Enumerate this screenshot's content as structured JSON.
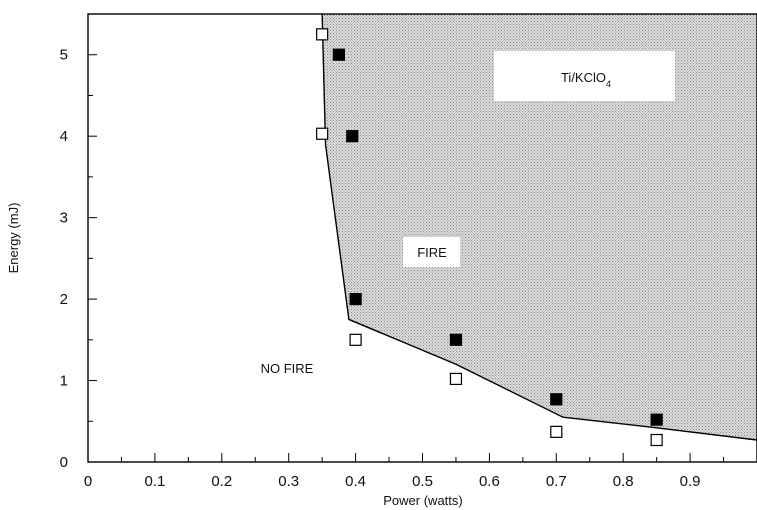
{
  "chart_data": {
    "type": "scatter",
    "title": "",
    "xlabel": "Power (watts)",
    "ylabel": "Energy (mJ)",
    "xlim": [
      0,
      1.0
    ],
    "ylim": [
      0,
      5.5
    ],
    "x_ticks": [
      "0",
      "0.1",
      "0.2",
      "0.3",
      "0.4",
      "0.5",
      "0.6",
      "0.7",
      "0.8",
      "0.9"
    ],
    "x_tick_values": [
      0,
      0.1,
      0.2,
      0.3,
      0.4,
      0.5,
      0.6,
      0.7,
      0.8,
      0.9
    ],
    "y_ticks": [
      "0",
      "1",
      "2",
      "3",
      "4",
      "5"
    ],
    "y_tick_values": [
      0,
      1,
      2,
      3,
      4,
      5
    ],
    "grid": false,
    "legend": "none",
    "series": [
      {
        "marker": "filled-square",
        "points": [
          {
            "x": 0.375,
            "y": 5.0
          },
          {
            "x": 0.395,
            "y": 4.0
          },
          {
            "x": 0.4,
            "y": 2.0
          },
          {
            "x": 0.55,
            "y": 1.5
          },
          {
            "x": 0.7,
            "y": 0.77
          },
          {
            "x": 0.85,
            "y": 0.52
          }
        ]
      },
      {
        "marker": "open-square",
        "points": [
          {
            "x": 0.35,
            "y": 5.25
          },
          {
            "x": 0.35,
            "y": 4.03
          },
          {
            "x": 0.4,
            "y": 1.5
          },
          {
            "x": 0.55,
            "y": 1.02
          },
          {
            "x": 0.7,
            "y": 0.37
          },
          {
            "x": 0.85,
            "y": 0.27
          }
        ]
      }
    ],
    "boundary": [
      {
        "x": 0.35,
        "y": 5.5
      },
      {
        "x": 0.355,
        "y": 3.9
      },
      {
        "x": 0.39,
        "y": 1.75
      },
      {
        "x": 0.55,
        "y": 1.2
      },
      {
        "x": 0.71,
        "y": 0.55
      },
      {
        "x": 0.85,
        "y": 0.42
      },
      {
        "x": 1.0,
        "y": 0.27
      }
    ],
    "regions": {
      "fire_label": "FIRE",
      "no_fire_label": "NO FIRE",
      "material_label": "Ti/KClO",
      "material_subscript": "4"
    },
    "colors": {
      "fire_region": "#d9d9d9",
      "stipple": "#8c8c8c",
      "axis": "#000000",
      "marker": "#000000"
    }
  }
}
